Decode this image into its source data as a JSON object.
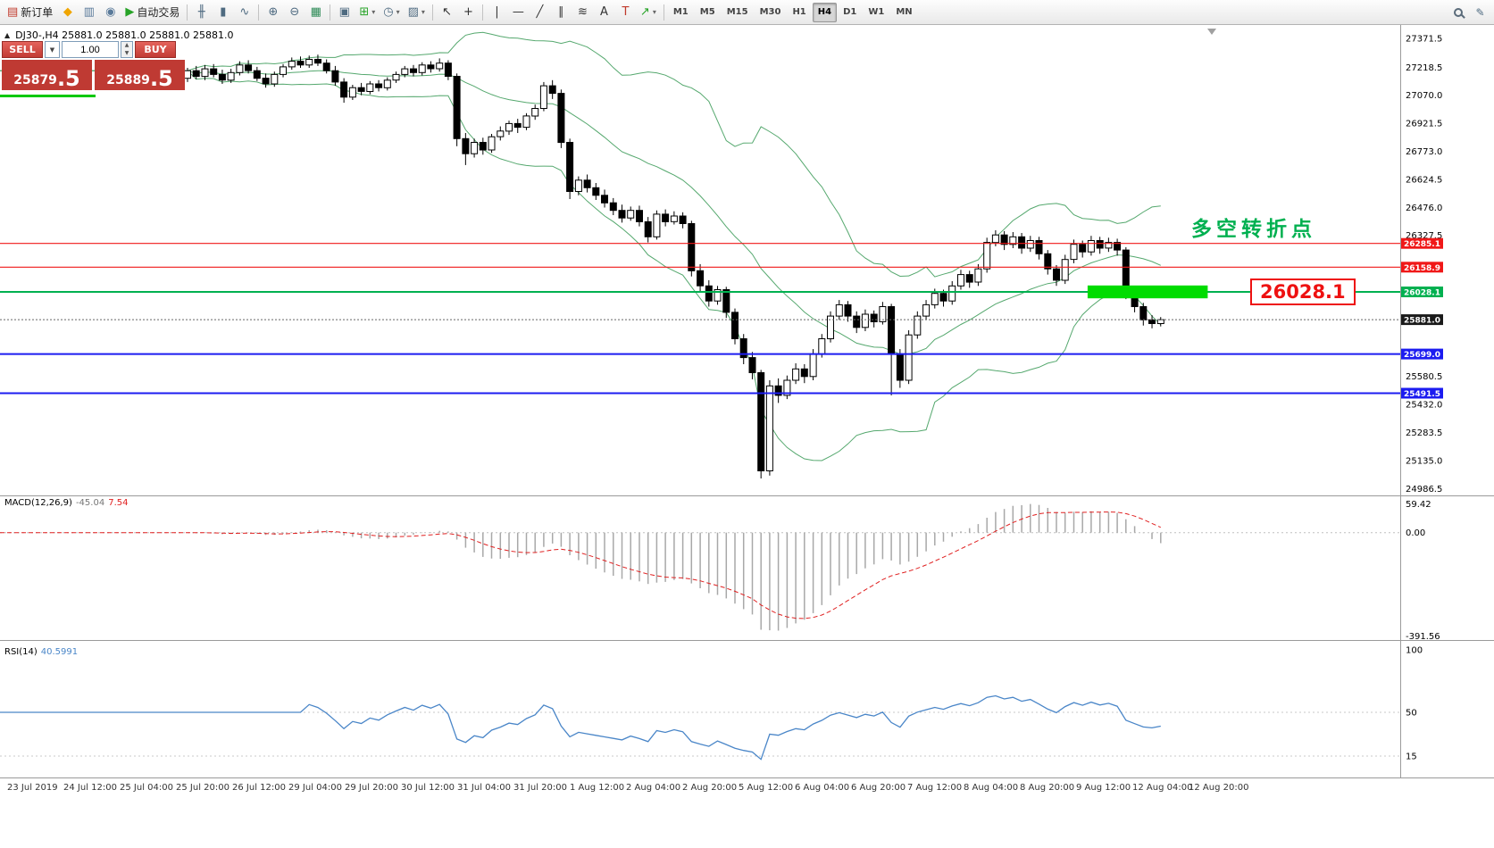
{
  "toolbar": {
    "items": [
      {
        "name": "new-order",
        "glyph": "▤",
        "glyph_color": "#c0392b",
        "label": "新订单"
      },
      {
        "name": "mql5-community",
        "glyph": "◆",
        "glyph_color": "#f0a500"
      },
      {
        "name": "chart-window",
        "glyph": "▥",
        "glyph_color": "#5a7a9a"
      },
      {
        "name": "market-depth",
        "glyph": "◉",
        "glyph_color": "#5a7a9a"
      },
      {
        "name": "autotrading",
        "glyph": "▶",
        "glyph_color": "#27a327",
        "label": "自动交易"
      },
      {
        "sep": true
      },
      {
        "name": "bar-chart",
        "glyph": "╫",
        "glyph_color": "#4e6a80"
      },
      {
        "name": "candlestick-chart",
        "glyph": "▮",
        "glyph_color": "#4e6a80"
      },
      {
        "name": "line-chart",
        "glyph": "∿",
        "glyph_color": "#4e6a80"
      },
      {
        "sep": true
      },
      {
        "name": "zoom-in",
        "glyph": "⊕",
        "glyph_color": "#4e6a80"
      },
      {
        "name": "zoom-out",
        "glyph": "⊖",
        "glyph_color": "#4e6a80"
      },
      {
        "name": "strategy-tester",
        "glyph": "▦",
        "glyph_color": "#2e8b57"
      },
      {
        "sep": true
      },
      {
        "name": "tile-windows",
        "glyph": "▣",
        "glyph_color": "#4e6a80"
      },
      {
        "name": "indicators",
        "glyph": "⊞",
        "glyph_color": "#27a327",
        "dropdown": true
      },
      {
        "name": "periods",
        "glyph": "◷",
        "glyph_color": "#4e6a80",
        "dropdown": true
      },
      {
        "name": "templates",
        "glyph": "▨",
        "glyph_color": "#4e6a80",
        "dropdown": true
      },
      {
        "sep": true
      },
      {
        "name": "cursor",
        "glyph": "↖",
        "glyph_color": "#333333"
      },
      {
        "name": "crosshair",
        "glyph": "+",
        "glyph_color": "#333333"
      },
      {
        "sep": true
      },
      {
        "name": "vertical-line",
        "glyph": "|",
        "glyph_color": "#333333"
      },
      {
        "name": "horizontal-line",
        "glyph": "—",
        "glyph_color": "#333333"
      },
      {
        "name": "trendline",
        "glyph": "╱",
        "glyph_color": "#333333"
      },
      {
        "name": "equidistant-channel",
        "glyph": "∥",
        "glyph_color": "#333333"
      },
      {
        "name": "fibonacci",
        "glyph": "≋",
        "glyph_color": "#333333"
      },
      {
        "name": "text",
        "glyph": "A",
        "glyph_color": "#333333"
      },
      {
        "name": "text-label",
        "glyph": "T",
        "glyph_color": "#c0392b"
      },
      {
        "name": "arrows",
        "glyph": "↗",
        "glyph_color": "#27a327",
        "dropdown": true
      },
      {
        "sep": true
      }
    ],
    "timeframes": [
      "M1",
      "M5",
      "M15",
      "M30",
      "H1",
      "H4",
      "D1",
      "W1",
      "MN"
    ],
    "active_timeframe": "H4"
  },
  "symbol_info": {
    "text": "DJ30-,H4  25881.0 25881.0 25881.0 25881.0"
  },
  "trade_panel": {
    "sell_label": "SELL",
    "buy_label": "BUY",
    "volume": "1.00",
    "sell_price": "25879",
    "sell_pip": ".5",
    "buy_price": "25889",
    "buy_pip": ".5"
  },
  "annotations": {
    "turning_point": "多空转折点",
    "turning_point_color": "#00b050",
    "price_box": "26028.1",
    "price_box_color": "#ee1111"
  },
  "chart_data": {
    "type": "candlestick",
    "symbol": "DJ30-",
    "timeframe": "H4",
    "price_range": {
      "min": 24950,
      "max": 27442
    },
    "price_axis_labels": [
      27371.5,
      27218.5,
      27070.0,
      26921.5,
      26773.0,
      26624.5,
      26476.0,
      26327.5,
      25580.5,
      25432.0,
      25283.5,
      25135.0,
      24986.5
    ],
    "current_price": 25881.0,
    "current_badge": "25881.0",
    "bollinger": {
      "period": 20,
      "deviation": 2,
      "color": "#55a86e"
    },
    "hlines": [
      {
        "price": 26285.1,
        "color": "#f01818",
        "width": 1.2,
        "badge": "26285.1"
      },
      {
        "price": 26158.9,
        "color": "#f01818",
        "width": 1.2,
        "badge": "26158.9"
      },
      {
        "price": 26028.1,
        "color": "#00b050",
        "width": 2,
        "badge": "26028.1"
      },
      {
        "price": 25699.0,
        "color": "#1c1cf0",
        "width": 2,
        "badge": "25699.0"
      },
      {
        "price": 25491.5,
        "color": "#1c1cf0",
        "width": 2,
        "badge": "25491.5"
      }
    ],
    "zone_rect": {
      "from_bar": 104,
      "to_bar": 117,
      "price_top": 26062,
      "price_bottom": 25994,
      "color": "#00dc00"
    },
    "candles": [
      [
        27160,
        27215,
        27140,
        27200
      ],
      [
        27200,
        27225,
        27155,
        27170
      ],
      [
        27170,
        27230,
        27150,
        27210
      ],
      [
        27210,
        27235,
        27165,
        27180
      ],
      [
        27180,
        27205,
        27130,
        27150
      ],
      [
        27150,
        27210,
        27135,
        27190
      ],
      [
        27190,
        27250,
        27175,
        27230
      ],
      [
        27230,
        27255,
        27185,
        27200
      ],
      [
        27200,
        27220,
        27145,
        27160
      ],
      [
        27160,
        27185,
        27110,
        27130
      ],
      [
        27130,
        27195,
        27115,
        27180
      ],
      [
        27180,
        27235,
        27165,
        27220
      ],
      [
        27220,
        27270,
        27205,
        27250
      ],
      [
        27250,
        27275,
        27215,
        27230
      ],
      [
        27230,
        27280,
        27215,
        27260
      ],
      [
        27260,
        27285,
        27225,
        27240
      ],
      [
        27240,
        27260,
        27185,
        27200
      ],
      [
        27200,
        27225,
        27120,
        27140
      ],
      [
        27140,
        27160,
        27030,
        27060
      ],
      [
        27060,
        27125,
        27045,
        27110
      ],
      [
        27110,
        27135,
        27070,
        27090
      ],
      [
        27090,
        27145,
        27075,
        27130
      ],
      [
        27130,
        27150,
        27090,
        27110
      ],
      [
        27110,
        27165,
        27095,
        27150
      ],
      [
        27150,
        27195,
        27135,
        27180
      ],
      [
        27180,
        27225,
        27165,
        27210
      ],
      [
        27210,
        27230,
        27170,
        27190
      ],
      [
        27190,
        27245,
        27175,
        27230
      ],
      [
        27230,
        27250,
        27190,
        27210
      ],
      [
        27210,
        27265,
        27195,
        27240
      ],
      [
        27240,
        27255,
        27150,
        27170
      ],
      [
        27170,
        27185,
        26800,
        26840
      ],
      [
        26840,
        26870,
        26700,
        26760
      ],
      [
        26760,
        26840,
        26740,
        26820
      ],
      [
        26820,
        26845,
        26755,
        26780
      ],
      [
        26780,
        26865,
        26765,
        26850
      ],
      [
        26850,
        26905,
        26830,
        26880
      ],
      [
        26880,
        26935,
        26860,
        26920
      ],
      [
        26920,
        26945,
        26870,
        26900
      ],
      [
        26900,
        26975,
        26885,
        26960
      ],
      [
        26960,
        27020,
        26940,
        27000
      ],
      [
        27000,
        27140,
        26985,
        27120
      ],
      [
        27120,
        27150,
        27050,
        27080
      ],
      [
        27080,
        27100,
        26790,
        26820
      ],
      [
        26820,
        26840,
        26520,
        26560
      ],
      [
        26560,
        26640,
        26540,
        26620
      ],
      [
        26620,
        26650,
        26555,
        26580
      ],
      [
        26580,
        26605,
        26515,
        26540
      ],
      [
        26540,
        26570,
        26475,
        26500
      ],
      [
        26500,
        26525,
        26435,
        26460
      ],
      [
        26460,
        26490,
        26395,
        26420
      ],
      [
        26420,
        26480,
        26405,
        26460
      ],
      [
        26460,
        26485,
        26375,
        26400
      ],
      [
        26400,
        26425,
        26290,
        26320
      ],
      [
        26320,
        26460,
        26305,
        26440
      ],
      [
        26440,
        26465,
        26375,
        26400
      ],
      [
        26400,
        26455,
        26385,
        26430
      ],
      [
        26430,
        26450,
        26365,
        26390
      ],
      [
        26390,
        26405,
        26110,
        26140
      ],
      [
        26140,
        26175,
        26030,
        26060
      ],
      [
        26060,
        26090,
        25950,
        25980
      ],
      [
        25980,
        26060,
        25960,
        26040
      ],
      [
        26040,
        26055,
        25890,
        25920
      ],
      [
        25920,
        25940,
        25750,
        25780
      ],
      [
        25780,
        25805,
        25645,
        25680
      ],
      [
        25680,
        25710,
        25565,
        25600
      ],
      [
        25600,
        25615,
        25040,
        25080
      ],
      [
        25080,
        25560,
        25055,
        25530
      ],
      [
        25530,
        25570,
        25440,
        25480
      ],
      [
        25480,
        25585,
        25460,
        25560
      ],
      [
        25560,
        25650,
        25540,
        25620
      ],
      [
        25620,
        25645,
        25545,
        25580
      ],
      [
        25580,
        25725,
        25560,
        25700
      ],
      [
        25700,
        25805,
        25680,
        25780
      ],
      [
        25780,
        25925,
        25760,
        25900
      ],
      [
        25900,
        25985,
        25880,
        25960
      ],
      [
        25960,
        25980,
        25870,
        25900
      ],
      [
        25900,
        25925,
        25810,
        25840
      ],
      [
        25840,
        25935,
        25820,
        25910
      ],
      [
        25910,
        25930,
        25840,
        25870
      ],
      [
        25870,
        25975,
        25855,
        25950
      ],
      [
        25950,
        25965,
        25480,
        25700
      ],
      [
        25700,
        25725,
        25520,
        25560
      ],
      [
        25560,
        25825,
        25540,
        25800
      ],
      [
        25800,
        25925,
        25780,
        25900
      ],
      [
        25900,
        25985,
        25880,
        25960
      ],
      [
        25960,
        26045,
        25940,
        26020
      ],
      [
        26020,
        26040,
        25950,
        25980
      ],
      [
        25980,
        26085,
        25960,
        26060
      ],
      [
        26060,
        26145,
        26040,
        26120
      ],
      [
        26120,
        26140,
        26050,
        26080
      ],
      [
        26080,
        26175,
        26060,
        26150
      ],
      [
        26150,
        26315,
        26130,
        26290
      ],
      [
        26290,
        26355,
        26270,
        26330
      ],
      [
        26330,
        26350,
        26250,
        26280
      ],
      [
        26280,
        26345,
        26260,
        26320
      ],
      [
        26320,
        26340,
        26230,
        26260
      ],
      [
        26260,
        26325,
        26240,
        26300
      ],
      [
        26300,
        26320,
        26200,
        26230
      ],
      [
        26230,
        26250,
        26120,
        26150
      ],
      [
        26150,
        26170,
        26060,
        26090
      ],
      [
        26090,
        26225,
        26070,
        26200
      ],
      [
        26200,
        26305,
        26180,
        26280
      ],
      [
        26280,
        26300,
        26210,
        26240
      ],
      [
        26240,
        26325,
        26220,
        26300
      ],
      [
        26300,
        26320,
        26230,
        26260
      ],
      [
        26260,
        26315,
        26240,
        26290
      ],
      [
        26290,
        26310,
        26220,
        26250
      ],
      [
        26250,
        26265,
        25990,
        26020
      ],
      [
        26020,
        26040,
        25920,
        25950
      ],
      [
        25950,
        25970,
        25850,
        25880
      ],
      [
        25880,
        25905,
        25835,
        25860
      ],
      [
        25860,
        25895,
        25845,
        25881
      ]
    ],
    "macd": {
      "title": "MACD(12,26,9)",
      "value_main": "-45.04",
      "value_signal": "7.54",
      "axis_labels": [
        "59.42",
        "0.00",
        "-391.56"
      ],
      "histogram_color": "#a8a8a8",
      "signal_color": "#e02020"
    },
    "rsi": {
      "title": "RSI(14)",
      "value": "40.5991",
      "period": 14,
      "axis_labels": [
        "100",
        "50",
        "15"
      ],
      "line_color": "#4a86c8"
    },
    "time_axis_labels": [
      "23 Jul 2019",
      "24 Jul 12:00",
      "25 Jul 04:00",
      "25 Jul 20:00",
      "26 Jul 12:00",
      "29 Jul 04:00",
      "29 Jul 20:00",
      "30 Jul 12:00",
      "31 Jul 04:00",
      "31 Jul 20:00",
      "1 Aug 12:00",
      "2 Aug 04:00",
      "2 Aug 20:00",
      "5 Aug 12:00",
      "6 Aug 04:00",
      "6 Aug 20:00",
      "7 Aug 12:00",
      "8 Aug 04:00",
      "8 Aug 20:00",
      "9 Aug 12:00",
      "12 Aug 04:00",
      "12 Aug 20:00"
    ]
  }
}
